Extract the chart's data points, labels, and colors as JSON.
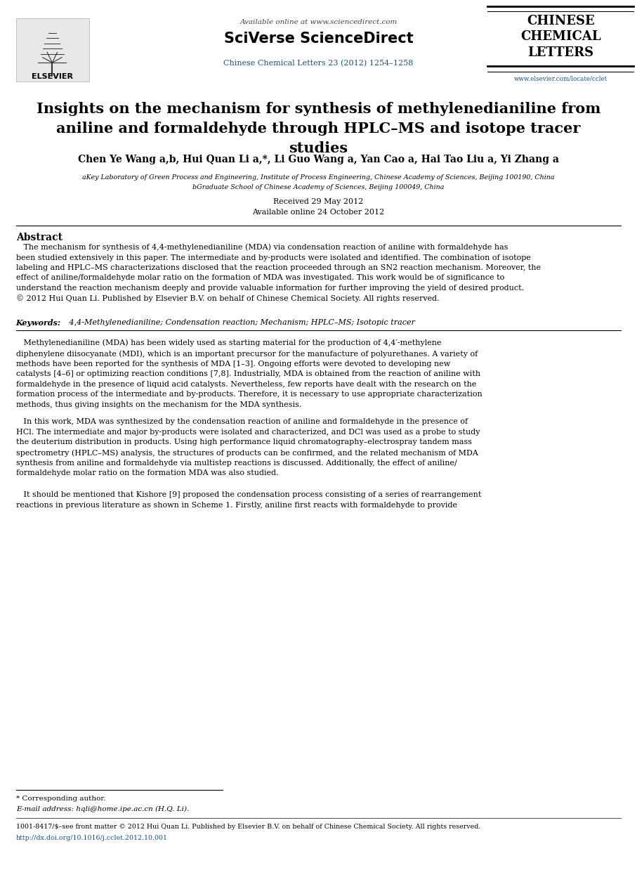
{
  "page_width": 9.07,
  "page_height": 12.38,
  "bg_color": "#ffffff",
  "header": {
    "available_online_text": "Available online at www.sciencedirect.com",
    "sciverse_text": "SciVerse ScienceDirect",
    "journal_ref": "Chinese Chemical Letters 23 (2012) 1254–1258",
    "journal_name_line1": "CHINESE",
    "journal_name_line2": "CHEMICAL",
    "journal_name_line3": "LETTERS",
    "elsevier_text": "ELSEVIER",
    "website": "www.elsevier.com/locate/cclet"
  },
  "title": "Insights on the mechanism for synthesis of methylenedianiline from\naniline and formaldehyde through HPLC–MS and isotope tracer\nstudies",
  "authors": "Chen Ye Wang a,b, Hui Quan Li a,*, Li Guo Wang a, Yan Cao a, Hai Tao Liu a, Yi Zhang a",
  "affiliation_a": "aKey Laboratory of Green Process and Engineering, Institute of Process Engineering, Chinese Academy of Sciences, Beijing 100190, China",
  "affiliation_b": "bGraduate School of Chinese Academy of Sciences, Beijing 100049, China",
  "received": "Received 29 May 2012",
  "available": "Available online 24 October 2012",
  "abstract_title": "Abstract",
  "abstract_text": "   The mechanism for synthesis of 4,4-methylenedianiline (MDA) via condensation reaction of aniline with formaldehyde has\nbeen studied extensively in this paper. The intermediate and by-products were isolated and identified. The combination of isotope\nlabeling and HPLC–MS characterizations disclosed that the reaction proceeded through an SN2 reaction mechanism. Moreover, the\neffect of aniline/formaldehyde molar ratio on the formation of MDA was investigated. This work would be of significance to\nunderstand the reaction mechanism deeply and provide valuable information for further improving the yield of desired product.\n© 2012 Hui Quan Li. Published by Elsevier B.V. on behalf of Chinese Chemical Society. All rights reserved.",
  "keywords_label": "Keywords:",
  "keywords": " 4,4-Methylenedianiline; Condensation reaction; Mechanism; HPLC–MS; Isotopic tracer",
  "body_para1": "   Methylenedianiline (MDA) has been widely used as starting material for the production of 4,4′-methylene\ndiphenylene diisocyanate (MDI), which is an important precursor for the manufacture of polyurethanes. A variety of\nmethods have been reported for the synthesis of MDA [1–3]. Ongoing efforts were devoted to developing new\ncatalysts [4–6] or optimizing reaction conditions [7,8]. Industrially, MDA is obtained from the reaction of aniline with\nformaldehyde in the presence of liquid acid catalysts. Nevertheless, few reports have dealt with the research on the\nformation process of the intermediate and by-products. Therefore, it is necessary to use appropriate characterization\nmethods, thus giving insights on the mechanism for the MDA synthesis.",
  "body_para2": "   In this work, MDA was synthesized by the condensation reaction of aniline and formaldehyde in the presence of\nHCl. The intermediate and major by-products were isolated and characterized, and DCl was used as a probe to study\nthe deuterium distribution in products. Using high performance liquid chromatography–electrospray tandem mass\nspectrometry (HPLC–MS) analysis, the structures of products can be confirmed, and the related mechanism of MDA\nsynthesis from aniline and formaldehyde via multistep reactions is discussed. Additionally, the effect of aniline/\nformaldehyde molar ratio on the formation MDA was also studied.",
  "body_para3": "   It should be mentioned that Kishore [9] proposed the condensation process consisting of a series of rearrangement\nreactions in previous literature as shown in Scheme 1. Firstly, aniline first reacts with formaldehyde to provide",
  "footnote_star": "* Corresponding author.",
  "footnote_email": "E-mail address: hqli@home.ipe.ac.cn (H.Q. Li).",
  "footer_left": "1001-8417/$–see front matter © 2012 Hui Quan Li. Published by Elsevier B.V. on behalf of Chinese Chemical Society. All rights reserved.",
  "footer_doi": "http://dx.doi.org/10.1016/j.cclet.2012.10.001",
  "colors": {
    "title_color": "#000000",
    "author_color": "#000000",
    "blue_link": "#1a5276",
    "dark_blue": "#003087",
    "body_text": "#000000",
    "journal_name_color": "#000000",
    "abstract_title_color": "#000000",
    "sciverse_color": "#000000",
    "available_color": "#444444",
    "header_line_color": "#000000"
  },
  "font_sizes": {
    "available_online": 7.5,
    "sciverse": 15,
    "journal_ref": 8,
    "elsevier": 8,
    "journal_name": 13,
    "title": 15,
    "authors": 10,
    "affiliation": 6.8,
    "received": 8,
    "abstract_title": 10,
    "abstract_body": 8.0,
    "keywords": 8.0,
    "body": 8.0,
    "footer": 6.8
  }
}
